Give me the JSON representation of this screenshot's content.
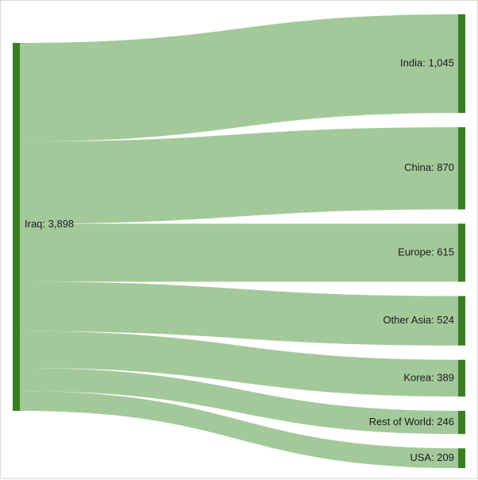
{
  "chart_data": {
    "type": "sankey",
    "source": {
      "name": "Iraq",
      "value": 3898,
      "label": "Iraq: 3,898"
    },
    "targets": [
      {
        "name": "India",
        "value": 1045,
        "label": "India: 1,045"
      },
      {
        "name": "China",
        "value": 870,
        "label": "China: 870"
      },
      {
        "name": "Europe",
        "value": 615,
        "label": "Europe: 615"
      },
      {
        "name": "Other Asia",
        "value": 524,
        "label": "Other Asia: 524"
      },
      {
        "name": "Korea",
        "value": 389,
        "label": "Korea: 389"
      },
      {
        "name": "Rest of World",
        "value": 246,
        "label": "Rest of World: 246"
      },
      {
        "name": "USA",
        "value": 209,
        "label": "USA: 209"
      }
    ],
    "colors": {
      "node": "#3a7d22",
      "link": "#a3c99a"
    }
  }
}
